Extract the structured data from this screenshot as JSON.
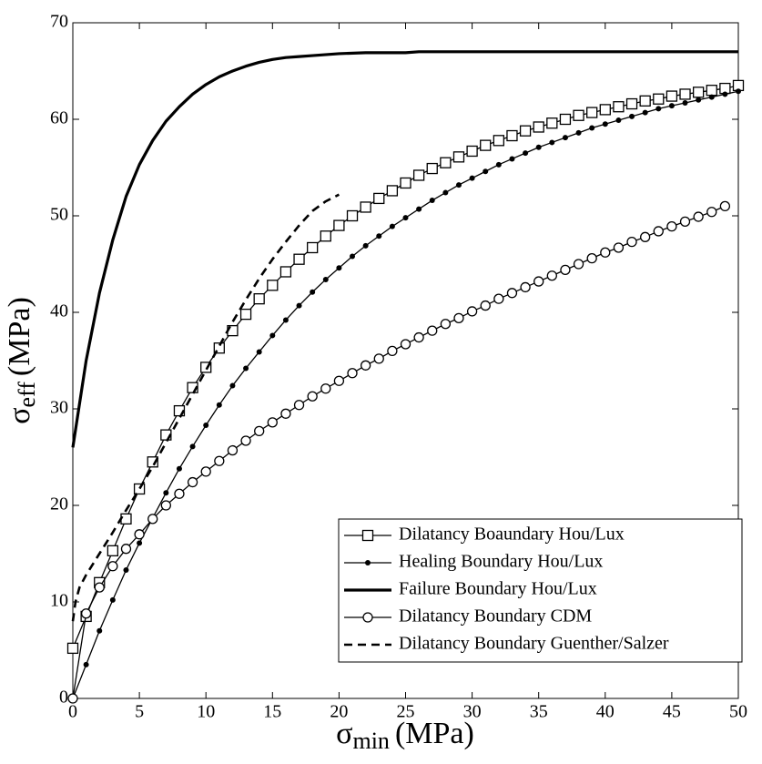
{
  "chart_data": {
    "type": "line",
    "x_label": {
      "symbol": "σ",
      "subscript": "min",
      "unit": "(MPa)"
    },
    "y_label": {
      "symbol": "σ",
      "subscript": "eff",
      "unit": "(MPa)"
    },
    "xlim": [
      0,
      50
    ],
    "xticks": [
      0,
      5,
      10,
      15,
      20,
      25,
      30,
      35,
      40,
      45,
      50
    ],
    "ylim": [
      0,
      70
    ],
    "yticks": [
      0,
      10,
      20,
      30,
      40,
      50,
      60,
      70
    ],
    "legend": "lower right",
    "grid": false,
    "series": [
      {
        "name": "Dilatancy Boaundary Hou/Lux",
        "color": "#000000",
        "marker": "square",
        "line_style": "solid",
        "line_width": 1.3,
        "x": [
          0,
          1,
          2,
          3,
          4,
          5,
          6,
          7,
          8,
          9,
          10,
          11,
          12,
          13,
          14,
          15,
          16,
          17,
          18,
          19,
          20,
          21,
          22,
          23,
          24,
          25,
          26,
          27,
          28,
          29,
          30,
          31,
          32,
          33,
          34,
          35,
          36,
          37,
          38,
          39,
          40,
          41,
          42,
          43,
          44,
          45,
          46,
          47,
          48,
          49,
          50
        ],
        "values": [
          5.2,
          8.5,
          12,
          15.3,
          18.6,
          21.7,
          24.5,
          27.3,
          29.8,
          32.2,
          34.3,
          36.3,
          38.1,
          39.8,
          41.4,
          42.8,
          44.2,
          45.5,
          46.7,
          47.9,
          49,
          50,
          50.9,
          51.8,
          52.6,
          53.4,
          54.2,
          54.9,
          55.5,
          56.1,
          56.7,
          57.3,
          57.8,
          58.3,
          58.8,
          59.2,
          59.6,
          60,
          60.4,
          60.7,
          61,
          61.3,
          61.6,
          61.9,
          62.1,
          62.4,
          62.6,
          62.8,
          63,
          63.2,
          63.5
        ]
      },
      {
        "name": "Healing Boundary Hou/Lux",
        "color": "#000000",
        "marker": "dot",
        "line_style": "solid",
        "line_width": 1.3,
        "x": [
          0,
          1,
          2,
          3,
          4,
          5,
          6,
          7,
          8,
          9,
          10,
          11,
          12,
          13,
          14,
          15,
          16,
          17,
          18,
          19,
          20,
          21,
          22,
          23,
          24,
          25,
          26,
          27,
          28,
          29,
          30,
          31,
          32,
          33,
          34,
          35,
          36,
          37,
          38,
          39,
          40,
          41,
          42,
          43,
          44,
          45,
          46,
          47,
          48,
          49,
          50
        ],
        "values": [
          0,
          3.5,
          7,
          10.2,
          13.3,
          16.1,
          18.7,
          21.3,
          23.8,
          26.1,
          28.3,
          30.4,
          32.4,
          34.2,
          35.9,
          37.6,
          39.2,
          40.7,
          42.1,
          43.4,
          44.6,
          45.8,
          46.9,
          47.9,
          48.9,
          49.8,
          50.7,
          51.6,
          52.4,
          53.2,
          53.9,
          54.6,
          55.3,
          55.9,
          56.5,
          57.1,
          57.6,
          58.1,
          58.6,
          59.1,
          59.5,
          59.9,
          60.3,
          60.7,
          61.1,
          61.4,
          61.7,
          62,
          62.3,
          62.6,
          62.9
        ]
      },
      {
        "name": "Failure Boundary Hou/Lux",
        "color": "#000000",
        "marker": "none",
        "line_style": "solid",
        "line_width": 3.2,
        "x": [
          0,
          1,
          2,
          3,
          4,
          5,
          6,
          7,
          8,
          9,
          10,
          11,
          12,
          13,
          14,
          15,
          16,
          17,
          18,
          20,
          22,
          25,
          26,
          30,
          40,
          50
        ],
        "values": [
          26,
          35,
          42,
          47.5,
          52,
          55.3,
          57.8,
          59.8,
          61.3,
          62.6,
          63.6,
          64.4,
          65,
          65.5,
          65.9,
          66.2,
          66.4,
          66.5,
          66.6,
          66.8,
          66.9,
          66.9,
          67,
          67,
          67,
          67
        ]
      },
      {
        "name": "Dilatancy Boundary CDM",
        "color": "#000000",
        "marker": "circle",
        "line_style": "solid",
        "line_width": 1.3,
        "x": [
          0,
          1,
          2,
          3,
          4,
          5,
          6,
          7,
          8,
          9,
          10,
          11,
          12,
          13,
          14,
          15,
          16,
          17,
          18,
          19,
          20,
          21,
          22,
          23,
          24,
          25,
          26,
          27,
          28,
          29,
          30,
          31,
          32,
          33,
          34,
          35,
          36,
          37,
          38,
          39,
          40,
          41,
          42,
          43,
          44,
          45,
          46,
          47,
          48,
          49
        ],
        "values": [
          0,
          8.8,
          11.5,
          13.7,
          15.5,
          17,
          18.6,
          20,
          21.2,
          22.4,
          23.5,
          24.6,
          25.7,
          26.7,
          27.7,
          28.6,
          29.5,
          30.4,
          31.3,
          32.1,
          32.9,
          33.7,
          34.5,
          35.2,
          36,
          36.7,
          37.4,
          38.1,
          38.8,
          39.4,
          40.1,
          40.7,
          41.4,
          42,
          42.6,
          43.2,
          43.8,
          44.4,
          45,
          45.6,
          46.2,
          46.7,
          47.3,
          47.8,
          48.4,
          48.9,
          49.4,
          49.9,
          50.4,
          51
        ]
      },
      {
        "name": "Dilatancy Boundary Guenther/Salzer",
        "color": "#000000",
        "marker": "none",
        "line_style": "dashed",
        "line_width": 2.6,
        "x": [
          0,
          0.2,
          0.5,
          1,
          2,
          3,
          4,
          5,
          6,
          7,
          8,
          9,
          10,
          11,
          12,
          13,
          14,
          15,
          16,
          17,
          18,
          19,
          20
        ],
        "values": [
          8,
          10,
          11.5,
          12.8,
          15,
          17.2,
          19.5,
          21.7,
          24,
          26.5,
          29,
          31.5,
          34,
          36.5,
          39,
          41.3,
          43.5,
          45.5,
          47.3,
          49,
          50.5,
          51.5,
          52.2
        ]
      }
    ]
  }
}
